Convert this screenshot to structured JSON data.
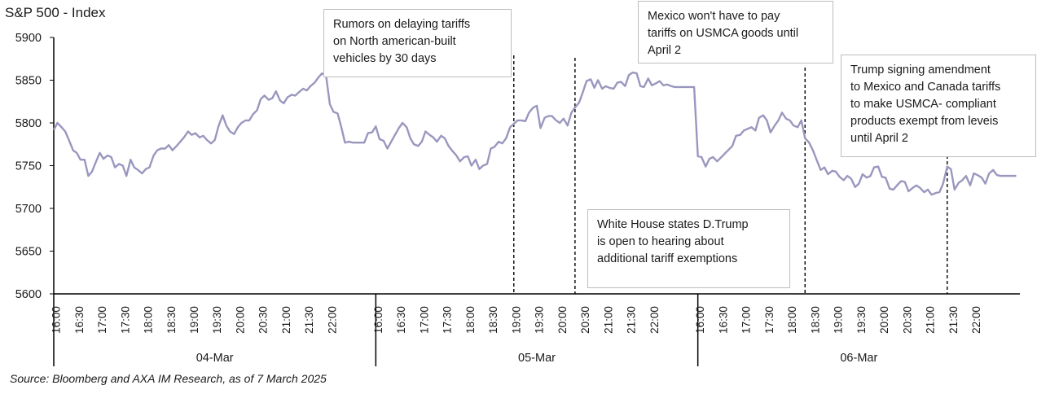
{
  "chart_data": {
    "type": "line",
    "title": "S&P 500 - Index",
    "ylim": [
      5600,
      5900
    ],
    "yticks": [
      5600,
      5650,
      5700,
      5750,
      5800,
      5850,
      5900
    ],
    "grid": false,
    "line_color": "#9a97bf",
    "days": [
      {
        "label": "04-Mar",
        "hour_ticks": [
          "16:00",
          "16:30",
          "17:00",
          "17:30",
          "18:00",
          "18:30",
          "19:00",
          "19:30",
          "20:00",
          "20:30",
          "21:00",
          "21:30",
          "22:00"
        ]
      },
      {
        "label": "05-Mar",
        "hour_ticks": [
          "16:00",
          "16:30",
          "17:00",
          "17:30",
          "18:00",
          "18:30",
          "19:00",
          "19:30",
          "20:00",
          "20:30",
          "21:00",
          "21:30",
          "22:00"
        ]
      },
      {
        "label": "06-Mar",
        "hour_ticks": [
          "16:00",
          "16:30",
          "17:00",
          "17:30",
          "18:00",
          "18:30",
          "19:00",
          "19:30",
          "20:00",
          "20:30",
          "21:00",
          "21:30",
          "22:00"
        ]
      }
    ],
    "series": [
      {
        "values": [
          [
            0,
            5792
          ],
          [
            0.08,
            5800
          ],
          [
            0.17,
            5795
          ],
          [
            0.25,
            5790
          ],
          [
            0.33,
            5780
          ],
          [
            0.42,
            5768
          ],
          [
            0.5,
            5765
          ],
          [
            0.58,
            5757
          ],
          [
            0.67,
            5757
          ],
          [
            0.75,
            5738
          ],
          [
            0.83,
            5743
          ],
          [
            0.92,
            5755
          ],
          [
            1.0,
            5765
          ],
          [
            1.08,
            5758
          ],
          [
            1.17,
            5762
          ],
          [
            1.25,
            5760
          ],
          [
            1.33,
            5748
          ],
          [
            1.42,
            5752
          ],
          [
            1.5,
            5750
          ],
          [
            1.58,
            5738
          ],
          [
            1.67,
            5757
          ],
          [
            1.75,
            5748
          ],
          [
            1.83,
            5745
          ],
          [
            1.92,
            5741
          ],
          [
            2.0,
            5746
          ],
          [
            2.08,
            5748
          ],
          [
            2.17,
            5762
          ],
          [
            2.25,
            5768
          ],
          [
            2.33,
            5770
          ],
          [
            2.42,
            5770
          ],
          [
            2.5,
            5774
          ],
          [
            2.58,
            5768
          ],
          [
            2.67,
            5773
          ],
          [
            2.75,
            5778
          ],
          [
            2.83,
            5783
          ],
          [
            2.92,
            5790
          ],
          [
            3.0,
            5786
          ],
          [
            3.08,
            5788
          ],
          [
            3.17,
            5783
          ],
          [
            3.25,
            5785
          ],
          [
            3.33,
            5780
          ],
          [
            3.42,
            5776
          ],
          [
            3.5,
            5780
          ],
          [
            3.58,
            5796
          ],
          [
            3.67,
            5809
          ],
          [
            3.75,
            5797
          ],
          [
            3.83,
            5790
          ],
          [
            3.92,
            5787
          ],
          [
            4.0,
            5795
          ],
          [
            4.08,
            5800
          ],
          [
            4.17,
            5803
          ],
          [
            4.25,
            5803
          ],
          [
            4.33,
            5810
          ],
          [
            4.42,
            5815
          ],
          [
            4.5,
            5828
          ],
          [
            4.58,
            5832
          ],
          [
            4.67,
            5827
          ],
          [
            4.75,
            5829
          ],
          [
            4.83,
            5837
          ],
          [
            4.92,
            5826
          ],
          [
            5.0,
            5823
          ],
          [
            5.08,
            5830
          ],
          [
            5.17,
            5833
          ],
          [
            5.25,
            5832
          ],
          [
            5.33,
            5836
          ],
          [
            5.42,
            5840
          ],
          [
            5.5,
            5838
          ],
          [
            5.58,
            5843
          ],
          [
            5.67,
            5847
          ],
          [
            5.75,
            5853
          ],
          [
            5.83,
            5858
          ],
          [
            5.92,
            5855
          ],
          [
            6.0,
            5822
          ],
          [
            6.08,
            5813
          ],
          [
            6.17,
            5811
          ],
          [
            6.25,
            5795
          ],
          [
            6.33,
            5777
          ],
          [
            6.42,
            5778
          ],
          [
            6.5,
            5777
          ],
          [
            6.58,
            5777
          ],
          [
            6.67,
            5777
          ],
          [
            6.75,
            5777
          ],
          [
            6.83,
            5788
          ],
          [
            6.92,
            5789
          ],
          [
            7.0,
            5796
          ],
          [
            7.08,
            5781
          ],
          [
            7.17,
            5779
          ],
          [
            7.25,
            5770
          ],
          [
            7.5,
            5794
          ],
          [
            7.58,
            5800
          ],
          [
            7.67,
            5795
          ],
          [
            7.75,
            5782
          ],
          [
            7.83,
            5775
          ],
          [
            7.92,
            5773
          ],
          [
            8.0,
            5778
          ],
          [
            8.08,
            5790
          ],
          [
            8.17,
            5786
          ],
          [
            8.25,
            5783
          ],
          [
            8.33,
            5778
          ],
          [
            8.42,
            5785
          ],
          [
            8.5,
            5782
          ],
          [
            8.58,
            5773
          ],
          [
            8.67,
            5767
          ],
          [
            8.75,
            5762
          ],
          [
            8.83,
            5755
          ],
          [
            8.92,
            5760
          ],
          [
            9.0,
            5761
          ],
          [
            9.08,
            5750
          ],
          [
            9.17,
            5757
          ],
          [
            9.25,
            5746
          ],
          [
            9.33,
            5750
          ],
          [
            9.42,
            5752
          ],
          [
            9.5,
            5770
          ],
          [
            9.58,
            5772
          ],
          [
            9.67,
            5778
          ],
          [
            9.75,
            5776
          ],
          [
            9.83,
            5782
          ],
          [
            9.92,
            5795
          ],
          [
            10.0,
            5799
          ],
          [
            10.08,
            5803
          ],
          [
            10.17,
            5803
          ],
          [
            10.25,
            5802
          ],
          [
            10.33,
            5812
          ],
          [
            10.42,
            5818
          ],
          [
            10.5,
            5820
          ],
          [
            10.58,
            5794
          ],
          [
            10.67,
            5806
          ],
          [
            10.75,
            5808
          ],
          [
            10.83,
            5808
          ],
          [
            10.92,
            5803
          ],
          [
            11.0,
            5800
          ],
          [
            11.08,
            5805
          ],
          [
            11.17,
            5797
          ],
          [
            11.25,
            5812
          ],
          [
            11.33,
            5818
          ],
          [
            11.42,
            5824
          ],
          [
            11.5,
            5836
          ],
          [
            11.58,
            5849
          ],
          [
            11.67,
            5851
          ],
          [
            11.75,
            5841
          ],
          [
            11.83,
            5850
          ],
          [
            11.92,
            5840
          ],
          [
            12.0,
            5843
          ],
          [
            12.08,
            5841
          ],
          [
            12.17,
            5840
          ],
          [
            12.25,
            5847
          ],
          [
            12.33,
            5848
          ],
          [
            12.42,
            5843
          ],
          [
            12.5,
            5856
          ],
          [
            12.58,
            5859
          ],
          [
            12.67,
            5858
          ],
          [
            12.75,
            5843
          ],
          [
            12.83,
            5842
          ],
          [
            12.92,
            5852
          ],
          [
            13.0,
            5844
          ],
          [
            13.08,
            5846
          ],
          [
            13.17,
            5849
          ],
          [
            13.25,
            5844
          ],
          [
            13.33,
            5845
          ],
          [
            13.42,
            5843
          ],
          [
            13.5,
            5842
          ],
          [
            13.58,
            5842
          ],
          [
            13.67,
            5842
          ],
          [
            13.75,
            5842
          ],
          [
            13.83,
            5842
          ],
          [
            13.92,
            5842
          ],
          [
            14.0,
            5761
          ],
          [
            14.08,
            5760
          ],
          [
            14.17,
            5749
          ],
          [
            14.25,
            5758
          ],
          [
            14.33,
            5760
          ],
          [
            14.42,
            5755
          ],
          [
            14.75,
            5773
          ],
          [
            14.83,
            5785
          ],
          [
            14.92,
            5786
          ],
          [
            15.0,
            5791
          ],
          [
            15.08,
            5793
          ],
          [
            15.17,
            5795
          ],
          [
            15.25,
            5791
          ],
          [
            15.33,
            5806
          ],
          [
            15.42,
            5809
          ],
          [
            15.5,
            5803
          ],
          [
            15.58,
            5789
          ],
          [
            15.67,
            5797
          ],
          [
            15.75,
            5803
          ],
          [
            15.83,
            5812
          ],
          [
            15.92,
            5805
          ],
          [
            16.0,
            5803
          ],
          [
            16.08,
            5797
          ],
          [
            16.17,
            5795
          ],
          [
            16.25,
            5803
          ],
          [
            16.33,
            5782
          ],
          [
            16.42,
            5777
          ],
          [
            16.5,
            5768
          ],
          [
            16.58,
            5757
          ],
          [
            16.67,
            5745
          ],
          [
            16.75,
            5748
          ],
          [
            16.83,
            5740
          ],
          [
            16.92,
            5744
          ],
          [
            17.0,
            5743
          ],
          [
            17.08,
            5737
          ],
          [
            17.17,
            5733
          ],
          [
            17.25,
            5738
          ],
          [
            17.33,
            5735
          ],
          [
            17.42,
            5725
          ],
          [
            17.5,
            5729
          ],
          [
            17.58,
            5740
          ],
          [
            17.67,
            5736
          ],
          [
            17.75,
            5738
          ],
          [
            17.83,
            5748
          ],
          [
            17.92,
            5749
          ],
          [
            18.0,
            5737
          ],
          [
            18.08,
            5736
          ],
          [
            18.17,
            5723
          ],
          [
            18.25,
            5722
          ],
          [
            18.33,
            5727
          ],
          [
            18.42,
            5732
          ],
          [
            18.5,
            5731
          ],
          [
            18.58,
            5720
          ],
          [
            18.67,
            5724
          ],
          [
            18.75,
            5727
          ],
          [
            18.83,
            5724
          ],
          [
            18.92,
            5719
          ],
          [
            19.0,
            5722
          ],
          [
            19.08,
            5716
          ],
          [
            19.17,
            5718
          ],
          [
            19.25,
            5719
          ],
          [
            19.33,
            5729
          ],
          [
            19.42,
            5749
          ],
          [
            19.5,
            5746
          ],
          [
            19.58,
            5722
          ],
          [
            19.67,
            5730
          ],
          [
            19.75,
            5733
          ],
          [
            19.83,
            5738
          ],
          [
            19.92,
            5727
          ],
          [
            20.0,
            5741
          ],
          [
            20.08,
            5739
          ],
          [
            20.17,
            5736
          ],
          [
            20.25,
            5729
          ],
          [
            20.33,
            5741
          ],
          [
            20.42,
            5745
          ],
          [
            20.5,
            5739
          ],
          [
            20.58,
            5738
          ],
          [
            20.67,
            5738
          ],
          [
            20.75,
            5738
          ],
          [
            20.83,
            5738
          ],
          [
            20.92,
            5738
          ]
        ]
      }
    ],
    "events": [
      {
        "x": 10.0,
        "lines": [
          "Rumors on delaying tariffs",
          "on North american-built",
          "vehicles by 30 days"
        ]
      },
      {
        "x": 11.33,
        "lines": [
          "White House states D.Trump",
          "is open to hearing about",
          "additional  tariff exemptions"
        ]
      },
      {
        "x": 16.33,
        "lines": [
          "Mexico won't have to pay",
          "tariffs on USMCA goods  until",
          "April 2"
        ]
      },
      {
        "x": 19.42,
        "lines": [
          "Trump signing amendment",
          "to Mexico and Canada tariffs",
          "to make USMCA- compliant",
          "products exempt from leveis",
          "until April 2"
        ]
      }
    ],
    "source": "Source: Bloomberg and AXA IM Research, as of  7 March 2025"
  }
}
